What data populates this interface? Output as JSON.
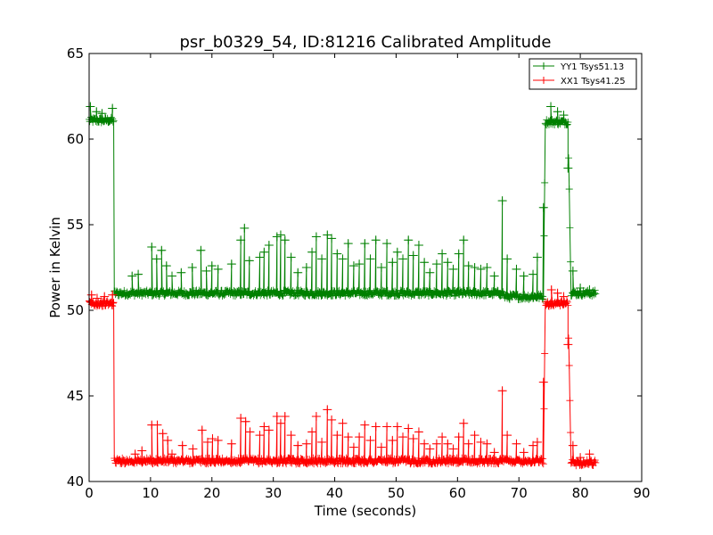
{
  "chart_data": {
    "type": "line",
    "title": "psr_b0329_54, ID:81216 Calibrated Amplitude",
    "xlabel": "Time (seconds)",
    "ylabel": "Power in Kelvin",
    "xlim": [
      0,
      90
    ],
    "ylim": [
      40,
      65
    ],
    "xticks": [
      "0",
      "10",
      "20",
      "30",
      "40",
      "50",
      "60",
      "70",
      "80",
      "90"
    ],
    "yticks": [
      "40",
      "45",
      "50",
      "55",
      "60",
      "65"
    ],
    "grid": false,
    "legend_position": "top-right",
    "marker": "+",
    "series": [
      {
        "name": "YY1 Tsys51.13",
        "color": "#008000",
        "baseline_segments": [
          {
            "x_start": 0.0,
            "x_end": 4.0,
            "level": 61.1
          },
          {
            "x_start": 4.1,
            "x_end": 67.6,
            "level": 51.0
          },
          {
            "x_start": 67.6,
            "x_end": 74.0,
            "level": 50.8
          },
          {
            "x_start": 74.3,
            "x_end": 78.0,
            "level": 61.0
          },
          {
            "x_start": 78.5,
            "x_end": 82.5,
            "level": 51.0
          }
        ],
        "spikes": [
          {
            "x": 0.2,
            "y": 61.9
          },
          {
            "x": 1.2,
            "y": 61.6
          },
          {
            "x": 2.1,
            "y": 61.5
          },
          {
            "x": 3.8,
            "y": 61.8
          },
          {
            "x": 7.0,
            "y": 52.0
          },
          {
            "x": 8.0,
            "y": 52.1
          },
          {
            "x": 10.2,
            "y": 53.7
          },
          {
            "x": 11.0,
            "y": 53.0
          },
          {
            "x": 11.8,
            "y": 53.5
          },
          {
            "x": 12.6,
            "y": 52.6
          },
          {
            "x": 13.5,
            "y": 52.0
          },
          {
            "x": 15.0,
            "y": 52.2
          },
          {
            "x": 16.8,
            "y": 52.5
          },
          {
            "x": 18.2,
            "y": 53.5
          },
          {
            "x": 19.1,
            "y": 52.3
          },
          {
            "x": 20.0,
            "y": 52.6
          },
          {
            "x": 21.0,
            "y": 52.4
          },
          {
            "x": 23.2,
            "y": 52.7
          },
          {
            "x": 24.7,
            "y": 54.1
          },
          {
            "x": 25.3,
            "y": 54.8
          },
          {
            "x": 26.1,
            "y": 52.9
          },
          {
            "x": 27.8,
            "y": 53.1
          },
          {
            "x": 28.5,
            "y": 53.4
          },
          {
            "x": 29.3,
            "y": 53.8
          },
          {
            "x": 30.6,
            "y": 54.3
          },
          {
            "x": 31.2,
            "y": 54.4
          },
          {
            "x": 31.9,
            "y": 54.1
          },
          {
            "x": 32.9,
            "y": 53.1
          },
          {
            "x": 34.0,
            "y": 52.2
          },
          {
            "x": 35.4,
            "y": 52.5
          },
          {
            "x": 36.3,
            "y": 53.4
          },
          {
            "x": 37.0,
            "y": 54.3
          },
          {
            "x": 37.9,
            "y": 53.0
          },
          {
            "x": 38.8,
            "y": 54.4
          },
          {
            "x": 39.5,
            "y": 54.2
          },
          {
            "x": 40.4,
            "y": 53.3
          },
          {
            "x": 41.3,
            "y": 53.0
          },
          {
            "x": 42.2,
            "y": 53.9
          },
          {
            "x": 43.1,
            "y": 52.6
          },
          {
            "x": 44.0,
            "y": 52.7
          },
          {
            "x": 44.9,
            "y": 53.9
          },
          {
            "x": 45.8,
            "y": 53.0
          },
          {
            "x": 46.7,
            "y": 54.1
          },
          {
            "x": 47.6,
            "y": 52.5
          },
          {
            "x": 48.5,
            "y": 53.9
          },
          {
            "x": 49.4,
            "y": 52.8
          },
          {
            "x": 50.2,
            "y": 53.4
          },
          {
            "x": 51.1,
            "y": 53.0
          },
          {
            "x": 52.0,
            "y": 54.1
          },
          {
            "x": 52.8,
            "y": 53.2
          },
          {
            "x": 53.7,
            "y": 53.8
          },
          {
            "x": 54.6,
            "y": 52.8
          },
          {
            "x": 55.5,
            "y": 52.2
          },
          {
            "x": 56.6,
            "y": 52.7
          },
          {
            "x": 57.5,
            "y": 53.3
          },
          {
            "x": 58.4,
            "y": 52.8
          },
          {
            "x": 59.3,
            "y": 52.4
          },
          {
            "x": 60.2,
            "y": 53.3
          },
          {
            "x": 61.0,
            "y": 54.1
          },
          {
            "x": 61.8,
            "y": 52.6
          },
          {
            "x": 62.8,
            "y": 52.5
          },
          {
            "x": 63.8,
            "y": 52.4
          },
          {
            "x": 64.8,
            "y": 52.5
          },
          {
            "x": 66.0,
            "y": 52.0
          },
          {
            "x": 67.3,
            "y": 56.4
          },
          {
            "x": 68.1,
            "y": 53.0
          },
          {
            "x": 69.6,
            "y": 52.4
          },
          {
            "x": 70.8,
            "y": 52.0
          },
          {
            "x": 72.3,
            "y": 52.1
          },
          {
            "x": 73.0,
            "y": 53.1
          },
          {
            "x": 74.0,
            "y": 56.0
          },
          {
            "x": 75.2,
            "y": 61.9
          },
          {
            "x": 76.3,
            "y": 61.6
          },
          {
            "x": 77.3,
            "y": 61.4
          },
          {
            "x": 78.0,
            "y": 58.3
          },
          {
            "x": 78.8,
            "y": 52.3
          },
          {
            "x": 80.0,
            "y": 51.3
          },
          {
            "x": 81.5,
            "y": 51.2
          }
        ]
      },
      {
        "name": "XX1 Tsys41.25",
        "color": "#ff0000",
        "baseline_segments": [
          {
            "x_start": 0.0,
            "x_end": 4.0,
            "level": 50.4
          },
          {
            "x_start": 4.1,
            "x_end": 74.0,
            "level": 41.2
          },
          {
            "x_start": 74.3,
            "x_end": 78.0,
            "level": 50.4
          },
          {
            "x_start": 78.5,
            "x_end": 82.5,
            "level": 41.1
          }
        ],
        "spikes": [
          {
            "x": 0.4,
            "y": 50.9
          },
          {
            "x": 1.3,
            "y": 50.7
          },
          {
            "x": 2.5,
            "y": 50.8
          },
          {
            "x": 3.8,
            "y": 50.9
          },
          {
            "x": 7.5,
            "y": 41.6
          },
          {
            "x": 8.6,
            "y": 41.8
          },
          {
            "x": 10.2,
            "y": 43.3
          },
          {
            "x": 11.1,
            "y": 43.3
          },
          {
            "x": 12.0,
            "y": 42.8
          },
          {
            "x": 12.8,
            "y": 42.4
          },
          {
            "x": 13.5,
            "y": 41.6
          },
          {
            "x": 15.2,
            "y": 42.1
          },
          {
            "x": 16.9,
            "y": 41.9
          },
          {
            "x": 18.4,
            "y": 43.0
          },
          {
            "x": 19.3,
            "y": 42.3
          },
          {
            "x": 20.1,
            "y": 42.5
          },
          {
            "x": 21.0,
            "y": 42.4
          },
          {
            "x": 23.2,
            "y": 42.2
          },
          {
            "x": 24.7,
            "y": 43.7
          },
          {
            "x": 25.5,
            "y": 43.5
          },
          {
            "x": 26.2,
            "y": 42.9
          },
          {
            "x": 27.8,
            "y": 42.7
          },
          {
            "x": 28.5,
            "y": 43.2
          },
          {
            "x": 29.3,
            "y": 43.0
          },
          {
            "x": 30.6,
            "y": 43.8
          },
          {
            "x": 31.2,
            "y": 43.4
          },
          {
            "x": 31.9,
            "y": 43.8
          },
          {
            "x": 32.9,
            "y": 42.7
          },
          {
            "x": 34.0,
            "y": 42.1
          },
          {
            "x": 35.4,
            "y": 42.2
          },
          {
            "x": 36.3,
            "y": 42.9
          },
          {
            "x": 37.0,
            "y": 43.8
          },
          {
            "x": 37.9,
            "y": 42.3
          },
          {
            "x": 38.8,
            "y": 44.2
          },
          {
            "x": 39.5,
            "y": 43.6
          },
          {
            "x": 40.4,
            "y": 42.7
          },
          {
            "x": 41.3,
            "y": 43.4
          },
          {
            "x": 42.2,
            "y": 42.6
          },
          {
            "x": 43.1,
            "y": 42.0
          },
          {
            "x": 44.0,
            "y": 42.6
          },
          {
            "x": 44.9,
            "y": 43.3
          },
          {
            "x": 45.8,
            "y": 42.4
          },
          {
            "x": 46.7,
            "y": 43.2
          },
          {
            "x": 47.6,
            "y": 42.0
          },
          {
            "x": 48.5,
            "y": 43.2
          },
          {
            "x": 49.4,
            "y": 42.4
          },
          {
            "x": 50.2,
            "y": 43.2
          },
          {
            "x": 51.1,
            "y": 42.6
          },
          {
            "x": 52.0,
            "y": 43.1
          },
          {
            "x": 52.8,
            "y": 42.5
          },
          {
            "x": 53.7,
            "y": 42.9
          },
          {
            "x": 54.6,
            "y": 42.2
          },
          {
            "x": 55.5,
            "y": 41.9
          },
          {
            "x": 56.6,
            "y": 42.2
          },
          {
            "x": 57.5,
            "y": 42.6
          },
          {
            "x": 58.4,
            "y": 42.2
          },
          {
            "x": 59.3,
            "y": 41.9
          },
          {
            "x": 60.2,
            "y": 42.6
          },
          {
            "x": 61.0,
            "y": 43.4
          },
          {
            "x": 61.8,
            "y": 42.2
          },
          {
            "x": 62.8,
            "y": 42.7
          },
          {
            "x": 63.8,
            "y": 42.3
          },
          {
            "x": 64.8,
            "y": 42.2
          },
          {
            "x": 66.0,
            "y": 41.7
          },
          {
            "x": 67.3,
            "y": 45.3
          },
          {
            "x": 68.1,
            "y": 42.7
          },
          {
            "x": 69.6,
            "y": 42.2
          },
          {
            "x": 70.8,
            "y": 41.7
          },
          {
            "x": 72.3,
            "y": 42.1
          },
          {
            "x": 73.0,
            "y": 42.3
          },
          {
            "x": 74.0,
            "y": 45.8
          },
          {
            "x": 75.3,
            "y": 51.2
          },
          {
            "x": 76.3,
            "y": 51.0
          },
          {
            "x": 77.3,
            "y": 50.8
          },
          {
            "x": 78.0,
            "y": 48.0
          },
          {
            "x": 78.8,
            "y": 42.1
          },
          {
            "x": 80.0,
            "y": 41.4
          },
          {
            "x": 81.5,
            "y": 41.6
          }
        ]
      }
    ]
  }
}
